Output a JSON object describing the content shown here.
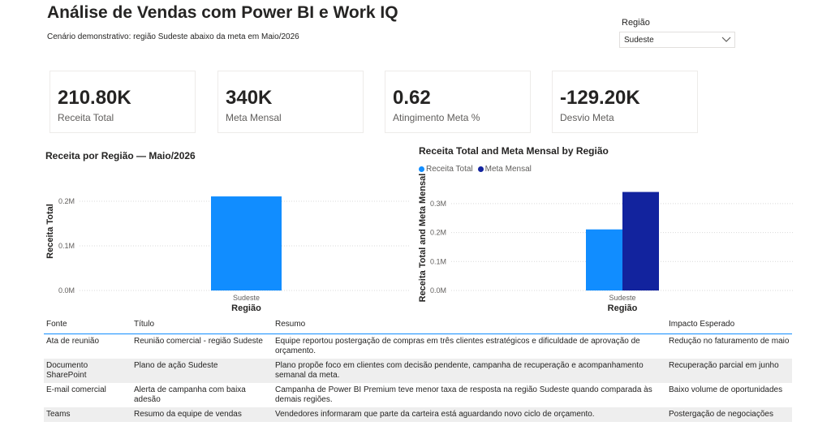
{
  "header": {
    "title": "Análise de Vendas com Power BI e Work IQ",
    "subtitle": "Cenário demonstrativo: região Sudeste abaixo da meta em Maio/2026"
  },
  "slicer": {
    "label": "Região",
    "value": "Sudeste",
    "icon": "chevron-down-icon"
  },
  "cards": [
    {
      "value": "210.80K",
      "label": "Receita Total"
    },
    {
      "value": "340K",
      "label": "Meta Mensal"
    },
    {
      "value": "0.62",
      "label": "Atingimento Meta %"
    },
    {
      "value": "-129.20K",
      "label": "Desvio Meta"
    }
  ],
  "colors": {
    "receita": "#118dff",
    "meta": "#12239e",
    "table_header_line": "#118dff",
    "row_alt": "#eeeeee"
  },
  "chart_data": [
    {
      "type": "bar",
      "title": "Receita por Região — Maio/2026",
      "xlabel": "Região",
      "ylabel": "Receita Total",
      "categories": [
        "Sudeste"
      ],
      "series": [
        {
          "name": "Receita Total",
          "values": [
            0.2108
          ]
        }
      ],
      "yticks": [
        "0.0M",
        "0.1M",
        "0.2M"
      ],
      "ylim": [
        0,
        0.22
      ],
      "grid": true
    },
    {
      "type": "bar",
      "title": "Receita Total and Meta Mensal by Região",
      "xlabel": "Região",
      "ylabel": "Receita Total and Meta Mensal",
      "categories": [
        "Sudeste"
      ],
      "series": [
        {
          "name": "Receita Total",
          "values": [
            0.2108
          ]
        },
        {
          "name": "Meta Mensal",
          "values": [
            0.34
          ]
        }
      ],
      "yticks": [
        "0.0M",
        "0.1M",
        "0.2M",
        "0.3M"
      ],
      "ylim": [
        0,
        0.35
      ],
      "legend": "top-left",
      "grid": true
    }
  ],
  "table": {
    "headers": [
      "Fonte",
      "Título",
      "Resumo",
      "Impacto Esperado"
    ],
    "rows": [
      [
        "Ata de reunião",
        "Reunião comercial - região Sudeste",
        "Equipe reportou postergação de compras em três clientes estratégicos e dificuldade de aprovação de orçamento.",
        "Redução no faturamento de maio"
      ],
      [
        "Documento SharePoint",
        "Plano de ação Sudeste",
        "Plano propõe foco em clientes com decisão pendente, campanha de recuperação e acompanhamento semanal da meta.",
        "Recuperação parcial em junho"
      ],
      [
        "E-mail comercial",
        "Alerta de campanha com baixa adesão",
        "Campanha de Power BI Premium teve menor taxa de resposta na região Sudeste quando comparada às demais regiões.",
        "Baixo volume de oportunidades"
      ],
      [
        "Teams",
        "Resumo da equipe de vendas",
        "Vendedores informaram que parte da carteira está aguardando novo ciclo de orçamento.",
        "Postergação de negociações"
      ]
    ]
  }
}
